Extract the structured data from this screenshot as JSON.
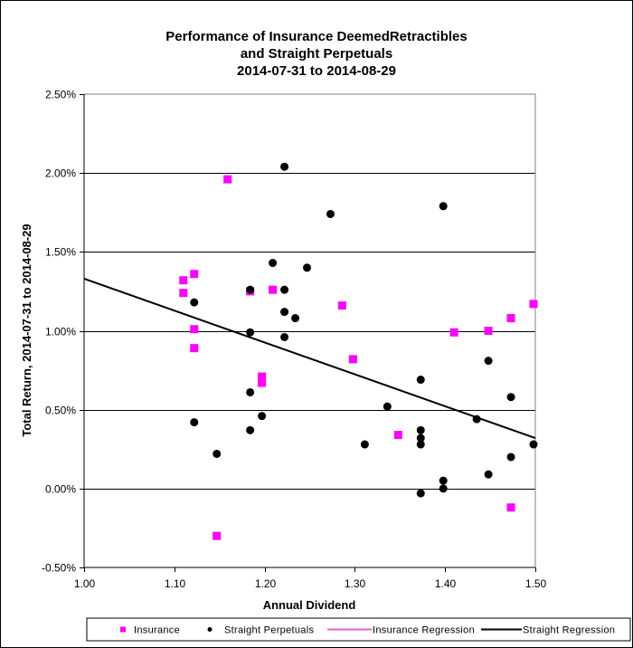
{
  "chart_data": {
    "type": "scatter",
    "title": [
      "Performance of Insurance DeemedRetractibles",
      "and Straight Perpetuals",
      "2014-07-31 to 2014-08-29"
    ],
    "xlabel": "Annual Dividend",
    "ylabel": "Total Return, 2014-07-31  to 2014-08-29",
    "xlim": [
      1.0,
      1.5
    ],
    "ylim": [
      -0.5,
      2.5
    ],
    "x_ticks": [
      1.0,
      1.1,
      1.2,
      1.3,
      1.4,
      1.5
    ],
    "x_tick_labels": [
      "1.00",
      "1.10",
      "1.20",
      "1.30",
      "1.40",
      "1.50"
    ],
    "y_ticks": [
      -0.5,
      0.0,
      0.5,
      1.0,
      1.5,
      2.0,
      2.5
    ],
    "y_tick_labels": [
      "-0.50%",
      "0.00%",
      "0.50%",
      "1.00%",
      "1.50%",
      "2.00%",
      "2.50%"
    ],
    "grid": "horizontal",
    "legend_position": "bottom",
    "series": [
      {
        "name": "Insurance",
        "marker": "square",
        "color": "#ff00ff",
        "points": [
          [
            1.159,
            1.96
          ],
          [
            1.122,
            1.36
          ],
          [
            1.11,
            1.32
          ],
          [
            1.11,
            1.24
          ],
          [
            1.122,
            1.01
          ],
          [
            1.122,
            0.89
          ],
          [
            1.184,
            1.25
          ],
          [
            1.209,
            1.26
          ],
          [
            1.197,
            0.71
          ],
          [
            1.197,
            0.67
          ],
          [
            1.286,
            1.16
          ],
          [
            1.298,
            0.82
          ],
          [
            1.348,
            0.34
          ],
          [
            1.41,
            0.99
          ],
          [
            1.448,
            1.0
          ],
          [
            1.473,
            1.08
          ],
          [
            1.498,
            1.17
          ],
          [
            1.473,
            -0.12
          ],
          [
            1.147,
            -0.3
          ]
        ]
      },
      {
        "name": "Straight Perpetuals",
        "marker": "circle",
        "color": "#000000",
        "points": [
          [
            1.222,
            2.04
          ],
          [
            1.273,
            1.74
          ],
          [
            1.398,
            1.79
          ],
          [
            1.209,
            1.43
          ],
          [
            1.247,
            1.4
          ],
          [
            1.184,
            1.26
          ],
          [
            1.222,
            1.26
          ],
          [
            1.122,
            1.18
          ],
          [
            1.222,
            1.12
          ],
          [
            1.234,
            1.08
          ],
          [
            1.184,
            0.99
          ],
          [
            1.222,
            0.96
          ],
          [
            1.184,
            0.61
          ],
          [
            1.197,
            0.46
          ],
          [
            1.122,
            0.42
          ],
          [
            1.184,
            0.37
          ],
          [
            1.147,
            0.22
          ],
          [
            1.448,
            0.81
          ],
          [
            1.373,
            0.69
          ],
          [
            1.336,
            0.52
          ],
          [
            1.473,
            0.58
          ],
          [
            1.435,
            0.44
          ],
          [
            1.373,
            0.37
          ],
          [
            1.373,
            0.32
          ],
          [
            1.373,
            0.28
          ],
          [
            1.311,
            0.28
          ],
          [
            1.498,
            0.28
          ],
          [
            1.473,
            0.2
          ],
          [
            1.448,
            0.09
          ],
          [
            1.398,
            0.05
          ],
          [
            1.398,
            0.0
          ],
          [
            1.373,
            -0.03
          ]
        ]
      }
    ],
    "regressions": [
      {
        "name": "Insurance Regression",
        "color": "#e060c0",
        "visible": false
      },
      {
        "name": "Straight Regression",
        "color": "#000000",
        "visible": true,
        "x": [
          1.0,
          1.5
        ],
        "y": [
          1.33,
          0.32
        ]
      }
    ],
    "legend": [
      {
        "label": "Insurance",
        "symbol": "square",
        "color": "#ff00ff"
      },
      {
        "label": "Straight Perpetuals",
        "symbol": "circle",
        "color": "#000000"
      },
      {
        "label": "Insurance Regression",
        "symbol": "line",
        "color": "#e060c0"
      },
      {
        "label": "Straight Regression",
        "symbol": "line",
        "color": "#000000"
      }
    ]
  }
}
